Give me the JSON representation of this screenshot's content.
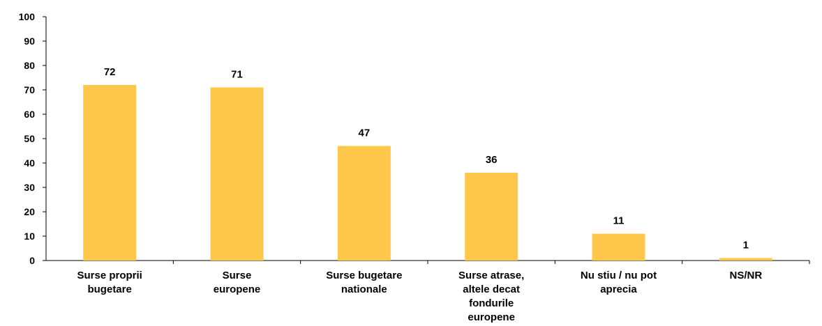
{
  "chart_data": {
    "type": "bar",
    "categories": [
      [
        "Surse proprii",
        "bugetare"
      ],
      [
        "Surse",
        "europene"
      ],
      [
        "Surse bugetare",
        "nationale"
      ],
      [
        "Surse atrase,",
        "altele decat",
        "fondurile",
        "europene"
      ],
      [
        "Nu stiu / nu pot",
        "aprecia"
      ],
      [
        "NS/NR"
      ]
    ],
    "values": [
      72,
      71,
      47,
      36,
      11,
      1
    ],
    "data_labels": [
      "72",
      "71",
      "47",
      "36",
      "11",
      "1"
    ],
    "ylim": [
      0,
      100
    ],
    "yticks": [
      0,
      10,
      20,
      30,
      40,
      50,
      60,
      70,
      80,
      90,
      100
    ],
    "ytick_labels": [
      "0",
      "10",
      "20",
      "30",
      "40",
      "50",
      "60",
      "70",
      "80",
      "90",
      "100"
    ],
    "bar_color": "#FFC84A",
    "grid": false,
    "legend": "none"
  }
}
